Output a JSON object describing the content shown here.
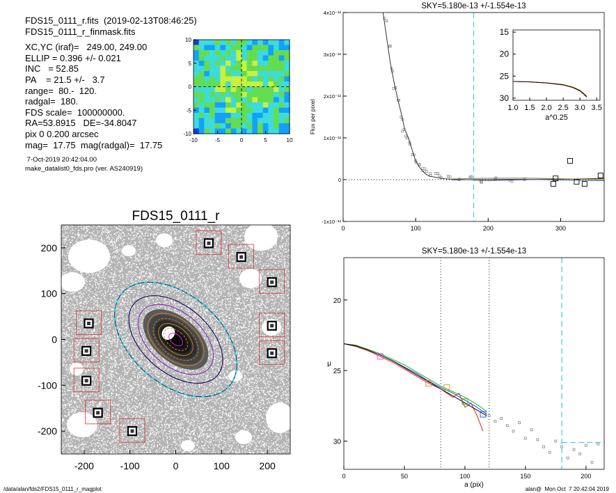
{
  "header": {
    "lines1": [
      "FDS15_0111_r.fits  (2019-02-13T08:46:25)",
      "FDS15_0111_r_finmask.fits"
    ],
    "lines2": [
      "XC,YC (iraf)=   249.00, 249.00",
      "ELLIP = 0.396 +/- 0.021",
      "INC   = 52.85",
      "PA    = 21.5 +/-   3.7",
      "range=  80.-  120.",
      "radgal=  180.",
      "FDS scale=  100000000.",
      "RA=53.8915   DE=-34.8047",
      "pix 0 0.200 arcsec",
      "mag=  17.75  mag(radgal)=  17.75"
    ],
    "timestamp": " 7-Oct-2019 20:42:04.00",
    "program": "make_datalist0_fds.pro (ver. AS240919)"
  },
  "footer": {
    "path": "/data/alan/fds2/FDS15_0111_r_magplot",
    "user": "alan@  Mon Oct  7 20:42:04 2019"
  },
  "chart_data": [
    {
      "id": "residual-map",
      "type": "heatmap",
      "xlim": [
        -10,
        10
      ],
      "ylim": [
        -10,
        10
      ],
      "xticks": [
        "-10",
        "-5",
        "0",
        "5",
        "10"
      ],
      "yticks": [
        "10",
        "5",
        "0",
        "-5",
        "-10"
      ],
      "colormap": [
        "#1e3ccd",
        "#14a0ff",
        "#3cdcdc",
        "#64dc50",
        "#c8f03c",
        "#ffc81e",
        "#f03214",
        "#fff5f0"
      ]
    },
    {
      "id": "galaxy-image",
      "type": "scatter",
      "title": "FDS15_0111_r",
      "xlim": [
        -250,
        250
      ],
      "ylim": [
        -250,
        250
      ],
      "xticks": [
        "-200",
        "-100",
        "0",
        "100",
        "200"
      ],
      "yticks": [
        "200",
        "100",
        "0",
        "-100",
        "-200"
      ],
      "ellipse": {
        "center": [
          0,
          0
        ],
        "pa_deg": 21.5,
        "ellip": 0.396,
        "radgal": 180,
        "range": [
          80,
          120
        ]
      },
      "masked_sources": [
        [
          72,
          210
        ],
        [
          143,
          180
        ],
        [
          210,
          125
        ],
        [
          210,
          30
        ],
        [
          210,
          -30
        ],
        [
          -190,
          35
        ],
        [
          -195,
          -25
        ],
        [
          -195,
          -90
        ],
        [
          -170,
          -160
        ],
        [
          -95,
          -200
        ]
      ]
    },
    {
      "id": "flux-profile",
      "type": "line",
      "title": "SKY=5.180e-13 +/-1.554e-13",
      "ylabel": "Flux per pixel",
      "xlim": [
        0,
        360
      ],
      "ylim": [
        -1e-12,
        4e-12
      ],
      "xticks": [
        "0",
        "100",
        "200",
        "300"
      ],
      "yticks": [
        "4x10⁻¹²",
        "3x10⁻¹²",
        "2x10⁻¹²",
        "1x10⁻¹²",
        "0",
        "-1x10⁻¹²"
      ],
      "sky_level": 0,
      "radgal": 180,
      "series": [
        {
          "x": [
            55,
            60,
            65,
            70,
            75,
            80,
            85,
            90,
            95,
            100,
            105,
            110,
            115,
            120,
            130,
            140,
            150,
            170,
            200,
            250,
            300,
            360
          ],
          "y": [
            4e-12,
            3.4e-12,
            2.8e-12,
            2.35e-12,
            1.95e-12,
            1.6e-12,
            1.2e-12,
            1e-12,
            7.2e-13,
            4.5e-13,
            3e-13,
            2e-13,
            1.2e-13,
            8e-14,
            5e-14,
            2e-14,
            1e-14,
            0.0,
            -2e-14,
            0.0,
            1e-14,
            3e-14
          ]
        }
      ],
      "points": [
        [
          60,
          3.8e-12
        ],
        [
          65,
          3.2e-12
        ],
        [
          68,
          2.6e-12
        ],
        [
          72,
          2.2e-12
        ],
        [
          76,
          1.9e-12
        ],
        [
          80,
          1.5e-12
        ],
        [
          84,
          1.2e-12
        ],
        [
          88,
          1e-12
        ],
        [
          92,
          8.5e-13
        ],
        [
          96,
          6e-13
        ],
        [
          100,
          4.5e-13
        ],
        [
          105,
          3.5e-13
        ],
        [
          110,
          2.2e-13
        ],
        [
          115,
          2e-13
        ],
        [
          120,
          1e-13
        ],
        [
          128,
          1.5e-13
        ],
        [
          135,
          5e-14
        ],
        [
          145,
          8e-14
        ],
        [
          160,
          0.0
        ],
        [
          175,
          6e-14
        ],
        [
          190,
          -5e-14
        ],
        [
          210,
          2e-14
        ],
        [
          230,
          -2e-14
        ],
        [
          250,
          0.0
        ]
      ],
      "squares": [
        [
          290,
          -1e-13
        ],
        [
          293,
          3e-14
        ],
        [
          313,
          4.5e-13
        ],
        [
          322,
          -5e-14
        ],
        [
          333,
          -1e-13
        ],
        [
          355,
          1e-13
        ]
      ],
      "inset": {
        "type": "line",
        "xlabel": "a^0.25",
        "xlim": [
          1.0,
          3.6
        ],
        "ylim": [
          30.5,
          14.5
        ],
        "xticks": [
          "1.0",
          "1.5",
          "2.0",
          "2.5",
          "3.0",
          "3.5"
        ],
        "yticks": [
          "15",
          "20",
          "25",
          "30"
        ],
        "series": [
          {
            "x": [
              1.0,
              1.5,
              2.0,
              2.5,
              2.8,
              3.0,
              3.1,
              3.2
            ],
            "y": [
              26.2,
              26.3,
              26.5,
              26.9,
              27.5,
              28.2,
              28.8,
              29.5
            ]
          }
        ]
      }
    },
    {
      "id": "surface-brightness",
      "type": "line",
      "title": "SKY=5.180e-13 +/-1.554e-13",
      "xlabel": "a (pix)",
      "ylabel": "μ",
      "xlim": [
        0,
        215
      ],
      "ylim": [
        32,
        17
      ],
      "xticks": [
        "0",
        "50",
        "100",
        "150",
        "200"
      ],
      "yticks": [
        "20",
        "25",
        "30"
      ],
      "range_lines": [
        80,
        120
      ],
      "radgal": 180,
      "sky_mu": 30.1,
      "series": [
        {
          "name": "red",
          "color": "#e02020",
          "x": [
            0,
            10,
            20,
            30,
            40,
            50,
            60,
            70,
            80,
            90,
            95,
            100,
            105,
            110,
            115
          ],
          "y": [
            23.1,
            23.3,
            23.6,
            24.0,
            24.4,
            24.9,
            25.4,
            25.9,
            26.3,
            26.9,
            26.6,
            27.6,
            27.3,
            28.2,
            29.3
          ]
        },
        {
          "name": "green",
          "color": "#20b020",
          "x": [
            0,
            10,
            20,
            30,
            40,
            50,
            60,
            70,
            80,
            90,
            100,
            110,
            118
          ],
          "y": [
            23.1,
            23.2,
            23.5,
            23.8,
            24.2,
            24.6,
            25.1,
            25.6,
            26.1,
            26.5,
            26.9,
            27.4,
            27.9
          ]
        },
        {
          "name": "blue",
          "color": "#2050e0",
          "x": [
            0,
            10,
            20,
            30,
            40,
            50,
            60,
            70,
            80,
            90,
            100,
            110,
            118
          ],
          "y": [
            23.1,
            23.25,
            23.55,
            23.9,
            24.3,
            24.75,
            25.2,
            25.75,
            26.2,
            26.6,
            27.1,
            27.6,
            28.1
          ]
        },
        {
          "name": "black",
          "color": "#000000",
          "x": [
            0,
            10,
            20,
            30,
            40,
            50,
            60,
            70,
            80,
            90,
            100,
            110,
            118
          ],
          "y": [
            23.1,
            23.25,
            23.55,
            23.9,
            24.3,
            24.8,
            25.3,
            25.8,
            26.3,
            26.8,
            27.3,
            27.8,
            28.2
          ]
        }
      ],
      "points": [
        [
          120,
          28.2
        ],
        [
          125,
          28.6
        ],
        [
          130,
          28.4
        ],
        [
          135,
          28.9
        ],
        [
          140,
          29.3
        ],
        [
          145,
          28.7
        ],
        [
          150,
          29.8
        ],
        [
          155,
          29.2
        ],
        [
          160,
          29.9
        ],
        [
          165,
          30.4
        ],
        [
          170,
          30.8
        ],
        [
          175,
          30.0
        ],
        [
          180,
          30.4
        ],
        [
          185,
          31.2
        ],
        [
          190,
          30.6
        ],
        [
          195,
          30.9
        ],
        [
          200,
          30.3
        ],
        [
          205,
          31.5
        ],
        [
          210,
          30.2
        ]
      ],
      "markers": [
        [
          30,
          24.0
        ],
        [
          70,
          25.9
        ],
        [
          85,
          26.2
        ],
        [
          100,
          27.2
        ],
        [
          115,
          28.1
        ]
      ]
    }
  ]
}
